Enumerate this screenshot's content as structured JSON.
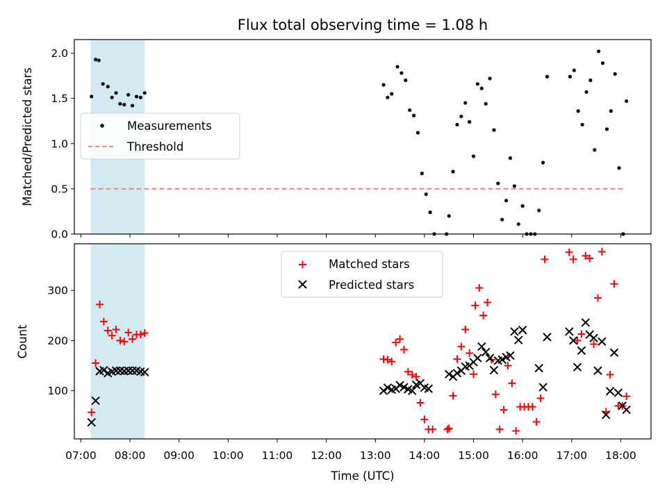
{
  "title": "Flux total observing time = 1.08 h",
  "shaded_region": {
    "start": "07:12",
    "end": "08:18",
    "color": "#add8e6"
  },
  "x_axis": {
    "xlabel": "Time (UTC)",
    "tick_labels": [
      "07:00",
      "08:00",
      "09:00",
      "10:00",
      "11:00",
      "12:00",
      "13:00",
      "14:00",
      "15:00",
      "16:00",
      "17:00",
      "18:00"
    ],
    "range": [
      "06:52",
      "18:37"
    ]
  },
  "chart_data": [
    {
      "type": "scatter",
      "ylabel": "Matched/Predicted stars",
      "ylim": [
        0,
        2.15
      ],
      "yticks": [
        "0.0",
        "0.5",
        "1.0",
        "1.5",
        "2.0"
      ],
      "legend": {
        "placement": "center-left",
        "entries": [
          "Measurements",
          "Threshold"
        ]
      },
      "threshold": {
        "name": "Threshold",
        "value": 0.5,
        "x_range": [
          "07:12",
          "18:05"
        ],
        "color": "#ff8080"
      },
      "series": [
        {
          "name": "Measurements",
          "color": "#000000",
          "points": [
            [
              "07:13",
              1.52
            ],
            [
              "07:18",
              1.93
            ],
            [
              "07:22",
              1.92
            ],
            [
              "07:27",
              1.66
            ],
            [
              "07:33",
              1.63
            ],
            [
              "07:38",
              1.51
            ],
            [
              "07:43",
              1.56
            ],
            [
              "07:48",
              1.44
            ],
            [
              "07:53",
              1.43
            ],
            [
              "07:58",
              1.54
            ],
            [
              "08:03",
              1.42
            ],
            [
              "08:08",
              1.52
            ],
            [
              "08:13",
              1.51
            ],
            [
              "08:18",
              1.56
            ],
            [
              "13:10",
              1.65
            ],
            [
              "13:15",
              1.51
            ],
            [
              "13:20",
              1.55
            ],
            [
              "13:27",
              1.85
            ],
            [
              "13:32",
              1.78
            ],
            [
              "13:37",
              1.7
            ],
            [
              "13:42",
              1.37
            ],
            [
              "13:47",
              1.31
            ],
            [
              "13:52",
              1.12
            ],
            [
              "13:57",
              0.67
            ],
            [
              "14:02",
              0.44
            ],
            [
              "14:07",
              0.24
            ],
            [
              "14:12",
              0.0
            ],
            [
              "14:27",
              0.0
            ],
            [
              "14:30",
              0.2
            ],
            [
              "14:35",
              0.69
            ],
            [
              "14:40",
              1.21
            ],
            [
              "14:45",
              1.3
            ],
            [
              "14:50",
              1.45
            ],
            [
              "14:55",
              1.24
            ],
            [
              "15:00",
              0.86
            ],
            [
              "15:05",
              1.66
            ],
            [
              "15:10",
              1.61
            ],
            [
              "15:15",
              1.44
            ],
            [
              "15:20",
              1.72
            ],
            [
              "15:25",
              1.15
            ],
            [
              "15:30",
              0.56
            ],
            [
              "15:35",
              0.16
            ],
            [
              "15:40",
              0.37
            ],
            [
              "15:45",
              0.84
            ],
            [
              "15:50",
              0.53
            ],
            [
              "15:55",
              0.11
            ],
            [
              "16:00",
              0.31
            ],
            [
              "16:05",
              0.0
            ],
            [
              "16:10",
              0.0
            ],
            [
              "16:15",
              0.0
            ],
            [
              "16:20",
              0.26
            ],
            [
              "16:25",
              0.79
            ],
            [
              "16:30",
              1.74
            ],
            [
              "16:58",
              1.74
            ],
            [
              "17:03",
              1.81
            ],
            [
              "17:08",
              1.36
            ],
            [
              "17:13",
              1.21
            ],
            [
              "17:18",
              1.57
            ],
            [
              "17:23",
              1.7
            ],
            [
              "17:28",
              0.93
            ],
            [
              "17:33",
              2.02
            ],
            [
              "17:38",
              1.89
            ],
            [
              "17:43",
              1.16
            ],
            [
              "17:48",
              1.36
            ],
            [
              "17:53",
              1.77
            ],
            [
              "17:58",
              0.73
            ],
            [
              "18:03",
              0.0
            ],
            [
              "18:07",
              1.47
            ]
          ]
        }
      ]
    },
    {
      "type": "scatter",
      "ylabel": "Count",
      "ylim": [
        4,
        393
      ],
      "yticks": [
        "100",
        "200",
        "300"
      ],
      "legend": {
        "placement": "top-center",
        "entries": [
          "Matched stars",
          "Predicted stars"
        ]
      },
      "series": [
        {
          "name": "Matched stars",
          "marker": "+",
          "color": "#ff0000",
          "points": [
            [
              "07:13",
              57
            ],
            [
              "07:18",
              155
            ],
            [
              "07:23",
              272
            ],
            [
              "07:28",
              238
            ],
            [
              "07:33",
              220
            ],
            [
              "07:38",
              210
            ],
            [
              "07:43",
              222
            ],
            [
              "07:48",
              200
            ],
            [
              "07:53",
              198
            ],
            [
              "07:58",
              216
            ],
            [
              "08:03",
              203
            ],
            [
              "08:08",
              212
            ],
            [
              "08:13",
              212
            ],
            [
              "08:18",
              215
            ],
            [
              "13:10",
              163
            ],
            [
              "13:15",
              162
            ],
            [
              "13:20",
              158
            ],
            [
              "13:25",
              196
            ],
            [
              "13:30",
              203
            ],
            [
              "13:35",
              182
            ],
            [
              "13:40",
              138
            ],
            [
              "13:45",
              132
            ],
            [
              "13:50",
              128
            ],
            [
              "13:55",
              76
            ],
            [
              "14:00",
              43
            ],
            [
              "14:05",
              23
            ],
            [
              "14:10",
              23
            ],
            [
              "14:28",
              23
            ],
            [
              "14:30",
              25
            ],
            [
              "14:35",
              90
            ],
            [
              "14:40",
              163
            ],
            [
              "14:45",
              188
            ],
            [
              "14:50",
              222
            ],
            [
              "14:55",
              175
            ],
            [
              "15:00",
              133
            ],
            [
              "15:02",
              270
            ],
            [
              "15:07",
              305
            ],
            [
              "15:12",
              250
            ],
            [
              "15:17",
              276
            ],
            [
              "15:22",
              162
            ],
            [
              "15:27",
              93
            ],
            [
              "15:32",
              23
            ],
            [
              "15:37",
              62
            ],
            [
              "15:42",
              150
            ],
            [
              "15:47",
              115
            ],
            [
              "15:52",
              20
            ],
            [
              "15:57",
              68
            ],
            [
              "16:02",
              68
            ],
            [
              "16:07",
              68
            ],
            [
              "16:12",
              68
            ],
            [
              "16:17",
              38
            ],
            [
              "16:22",
              85
            ],
            [
              "16:27",
              362
            ],
            [
              "16:57",
              376
            ],
            [
              "17:02",
              362
            ],
            [
              "17:07",
              200
            ],
            [
              "17:12",
              213
            ],
            [
              "17:17",
              369
            ],
            [
              "17:22",
              364
            ],
            [
              "17:27",
              193
            ],
            [
              "17:32",
              285
            ],
            [
              "17:37",
              377
            ],
            [
              "17:42",
              58
            ],
            [
              "17:47",
              132
            ],
            [
              "17:52",
              313
            ],
            [
              "17:57",
              70
            ],
            [
              "18:02",
              70
            ],
            [
              "18:07",
              89
            ]
          ]
        },
        {
          "name": "Predicted stars",
          "marker": "x",
          "color": "#000000",
          "points": [
            [
              "07:13",
              37
            ],
            [
              "07:18",
              80
            ],
            [
              "07:23",
              139
            ],
            [
              "07:28",
              141
            ],
            [
              "07:33",
              135
            ],
            [
              "07:38",
              138
            ],
            [
              "07:43",
              140
            ],
            [
              "07:48",
              140
            ],
            [
              "07:53",
              139
            ],
            [
              "07:58",
              140
            ],
            [
              "08:03",
              140
            ],
            [
              "08:08",
              140
            ],
            [
              "08:13",
              138
            ],
            [
              "08:18",
              137
            ],
            [
              "13:10",
              100
            ],
            [
              "13:15",
              106
            ],
            [
              "13:20",
              102
            ],
            [
              "13:25",
              104
            ],
            [
              "13:30",
              111
            ],
            [
              "13:35",
              107
            ],
            [
              "13:40",
              103
            ],
            [
              "13:45",
              100
            ],
            [
              "13:50",
              112
            ],
            [
              "13:55",
              115
            ],
            [
              "14:00",
              106
            ],
            [
              "14:05",
              104
            ],
            [
              "14:30",
              133
            ],
            [
              "14:35",
              128
            ],
            [
              "14:40",
              135
            ],
            [
              "14:45",
              140
            ],
            [
              "14:50",
              148
            ],
            [
              "14:55",
              150
            ],
            [
              "15:00",
              157
            ],
            [
              "15:05",
              165
            ],
            [
              "15:10",
              188
            ],
            [
              "15:15",
              177
            ],
            [
              "15:20",
              165
            ],
            [
              "15:25",
              141
            ],
            [
              "15:30",
              160
            ],
            [
              "15:35",
              162
            ],
            [
              "15:40",
              167
            ],
            [
              "15:45",
              170
            ],
            [
              "15:50",
              218
            ],
            [
              "15:55",
              201
            ],
            [
              "16:00",
              221
            ],
            [
              "16:20",
              145
            ],
            [
              "16:25",
              107
            ],
            [
              "16:30",
              207
            ],
            [
              "16:57",
              218
            ],
            [
              "17:02",
              200
            ],
            [
              "17:07",
              147
            ],
            [
              "17:12",
              180
            ],
            [
              "17:17",
              236
            ],
            [
              "17:22",
              212
            ],
            [
              "17:27",
              205
            ],
            [
              "17:32",
              140
            ],
            [
              "17:37",
              198
            ],
            [
              "17:42",
              52
            ],
            [
              "17:47",
              99
            ],
            [
              "17:52",
              176
            ],
            [
              "17:57",
              96
            ],
            [
              "18:02",
              70
            ],
            [
              "18:07",
              62
            ]
          ]
        }
      ]
    }
  ]
}
